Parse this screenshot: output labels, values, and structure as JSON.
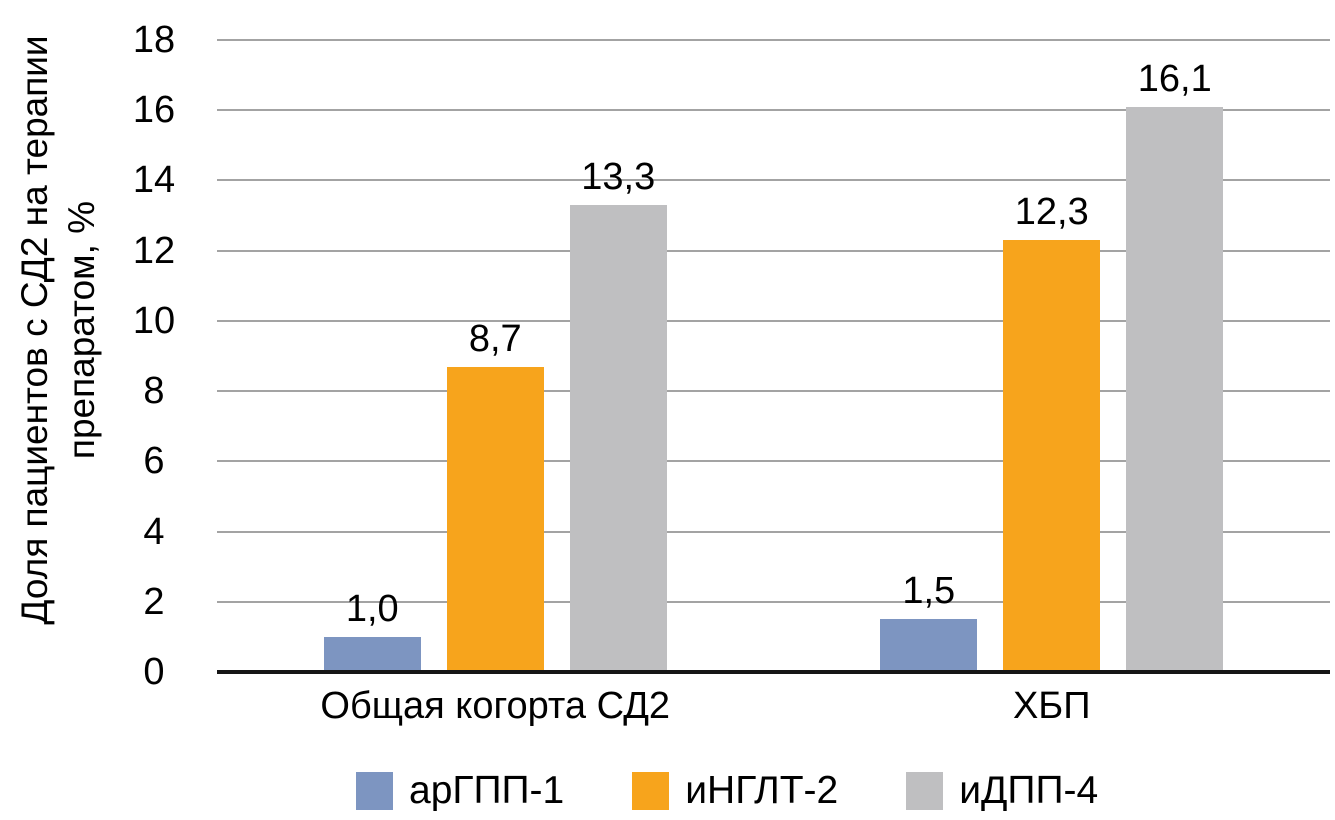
{
  "chart_data": {
    "type": "bar",
    "title": "",
    "ylabel": "Доля пациентов с СД2 на терапии\nпрепаратом, %",
    "xlabel": "",
    "categories": [
      "Общая когорта СД2",
      "ХБП"
    ],
    "series": [
      {
        "name": "арГПП-1",
        "color": "#7D95C1",
        "values": [
          1.0,
          1.5
        ],
        "value_labels": [
          "1,0",
          "1,5"
        ]
      },
      {
        "name": "иНГЛТ-2",
        "color": "#F7A41C",
        "values": [
          8.7,
          12.3
        ],
        "value_labels": [
          "8,7",
          "12,3"
        ]
      },
      {
        "name": "иДПП-4",
        "color": "#BFBFC1",
        "values": [
          13.3,
          16.1
        ],
        "value_labels": [
          "13,3",
          "16,1"
        ]
      }
    ],
    "ylim": [
      0,
      18
    ],
    "yticks": [
      0,
      2,
      4,
      6,
      8,
      10,
      12,
      14,
      16,
      18
    ],
    "grid": true,
    "legend_position": "bottom"
  },
  "colors": {
    "background": "#FFFFFF",
    "gridline": "#A3A3A3",
    "axis_line": "#161616",
    "text": "#000000"
  }
}
